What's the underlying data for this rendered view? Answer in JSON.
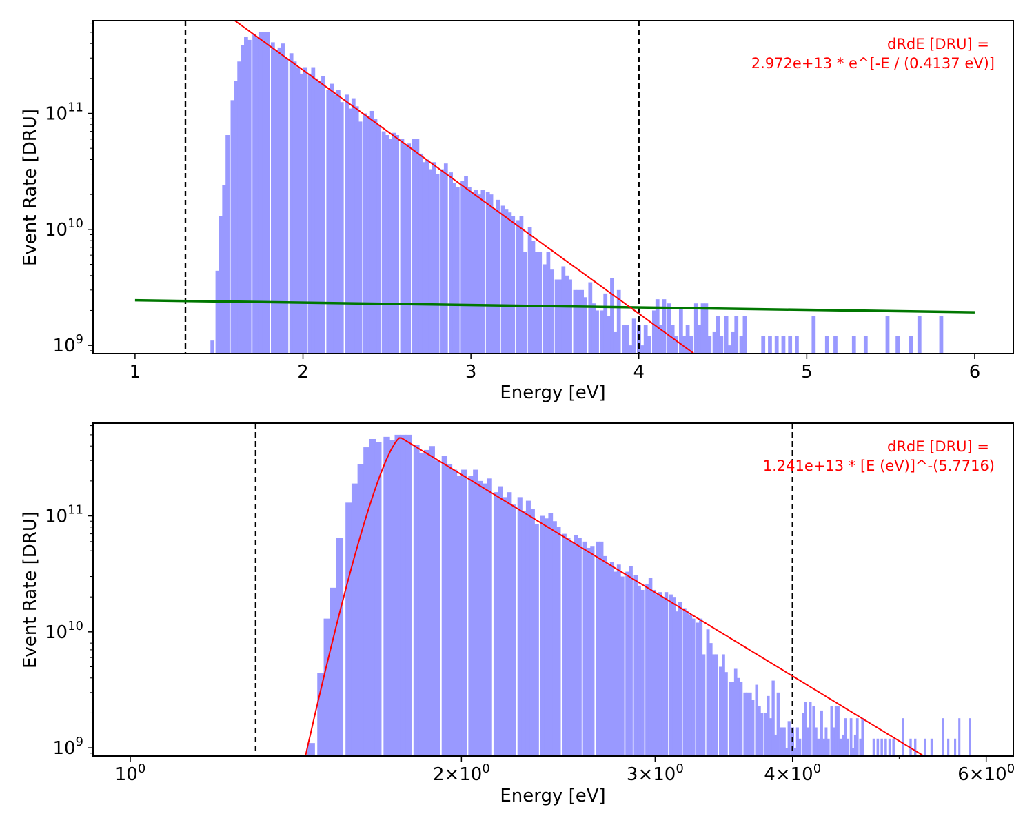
{
  "chart_data": [
    {
      "type": "bar",
      "title": "",
      "xlabel": "Energy [eV]",
      "ylabel": "Event Rate [DRU]",
      "xscale": "linear",
      "yscale": "log",
      "xlim": [
        0.75,
        6.23
      ],
      "ylim": [
        850000000.0,
        630000000000.0
      ],
      "grid": false,
      "x_ticks": [
        1,
        2,
        3,
        4,
        5,
        6
      ],
      "x_tick_labels": [
        "1",
        "2",
        "3",
        "4",
        "5",
        "6"
      ],
      "y_ticks": [
        1000000000.0,
        10000000000.0,
        100000000000.0
      ],
      "y_tick_base": [
        "10",
        "10",
        "10"
      ],
      "y_tick_exp": [
        "9",
        "10",
        "11"
      ],
      "hist_color": "#9999ff",
      "hist_bin_width": 0.022,
      "histogram": [
        [
          1.46,
          1100000000.0
        ],
        [
          1.49,
          4400000000.0
        ],
        [
          1.51,
          13000000000.0
        ],
        [
          1.53,
          24000000000.0
        ],
        [
          1.55,
          65000000000.0
        ],
        [
          1.58,
          130000000000.0
        ],
        [
          1.6,
          190000000000.0
        ],
        [
          1.62,
          280000000000.0
        ],
        [
          1.64,
          390000000000.0
        ],
        [
          1.66,
          460000000000.0
        ],
        [
          1.68,
          430000000000.0
        ],
        [
          1.71,
          480000000000.0
        ],
        [
          1.73,
          450000000000.0
        ],
        [
          1.75,
          500000000000.0
        ],
        [
          1.77,
          500000000000.0
        ],
        [
          1.79,
          500000000000.0
        ],
        [
          1.82,
          410000000000.0
        ],
        [
          1.84,
          350000000000.0
        ],
        [
          1.86,
          370000000000.0
        ],
        [
          1.88,
          400000000000.0
        ],
        [
          1.9,
          300000000000.0
        ],
        [
          1.93,
          330000000000.0
        ],
        [
          1.95,
          280000000000.0
        ],
        [
          1.97,
          250000000000.0
        ],
        [
          1.99,
          220000000000.0
        ],
        [
          2.01,
          250000000000.0
        ],
        [
          2.04,
          220000000000.0
        ],
        [
          2.06,
          250000000000.0
        ],
        [
          2.08,
          200000000000.0
        ],
        [
          2.1,
          190000000000.0
        ],
        [
          2.12,
          210000000000.0
        ],
        [
          2.15,
          160000000000.0
        ],
        [
          2.17,
          180000000000.0
        ],
        [
          2.19,
          145000000000.0
        ],
        [
          2.21,
          160000000000.0
        ],
        [
          2.23,
          125000000000.0
        ],
        [
          2.26,
          145000000000.0
        ],
        [
          2.28,
          110000000000.0
        ],
        [
          2.3,
          135000000000.0
        ],
        [
          2.32,
          115000000000.0
        ],
        [
          2.34,
          85000000000.0
        ],
        [
          2.37,
          100000000000.0
        ],
        [
          2.39,
          95000000000.0
        ],
        [
          2.41,
          105000000000.0
        ],
        [
          2.43,
          90000000000.0
        ],
        [
          2.45,
          80000000000.0
        ],
        [
          2.48,
          70000000000.0
        ],
        [
          2.5,
          65000000000.0
        ],
        [
          2.52,
          60000000000.0
        ],
        [
          2.54,
          68000000000.0
        ],
        [
          2.56,
          65000000000.0
        ],
        [
          2.59,
          60000000000.0
        ],
        [
          2.61,
          53000000000.0
        ],
        [
          2.63,
          55000000000.0
        ],
        [
          2.66,
          60000000000.0
        ],
        [
          2.68,
          60000000000.0
        ],
        [
          2.7,
          45000000000.0
        ],
        [
          2.72,
          38000000000.0
        ],
        [
          2.74,
          40000000000.0
        ],
        [
          2.76,
          33000000000.0
        ],
        [
          2.78,
          38000000000.0
        ],
        [
          2.8,
          30000000000.0
        ],
        [
          2.83,
          33000000000.0
        ],
        [
          2.85,
          37000000000.0
        ],
        [
          2.88,
          31000000000.0
        ],
        [
          2.9,
          25000000000.0
        ],
        [
          2.92,
          23000000000.0
        ],
        [
          2.95,
          26000000000.0
        ],
        [
          2.97,
          29000000000.0
        ],
        [
          2.99,
          23000000000.0
        ],
        [
          3.01,
          21000000000.0
        ],
        [
          3.03,
          22000000000.0
        ],
        [
          3.05,
          20000000000.0
        ],
        [
          3.07,
          22000000000.0
        ],
        [
          3.1,
          21000000000.0
        ],
        [
          3.12,
          20000000000.0
        ],
        [
          3.14,
          15000000000.0
        ],
        [
          3.16,
          18000000000.0
        ],
        [
          3.19,
          16000000000.0
        ],
        [
          3.21,
          15000000000.0
        ],
        [
          3.23,
          14000000000.0
        ],
        [
          3.25,
          13000000000.0
        ],
        [
          3.28,
          12000000000.0
        ],
        [
          3.3,
          13000000000.0
        ],
        [
          3.32,
          6400000000.0
        ],
        [
          3.35,
          10500000000.0
        ],
        [
          3.37,
          8000000000.0
        ],
        [
          3.39,
          6400000000.0
        ],
        [
          3.41,
          6400000000.0
        ],
        [
          3.44,
          5000000000.0
        ],
        [
          3.46,
          6400000000.0
        ],
        [
          3.48,
          4500000000.0
        ],
        [
          3.51,
          3700000000.0
        ],
        [
          3.53,
          3700000000.0
        ],
        [
          3.55,
          4800000000.0
        ],
        [
          3.57,
          4000000000.0
        ],
        [
          3.59,
          3700000000.0
        ],
        [
          3.62,
          3000000000.0
        ],
        [
          3.64,
          3000000000.0
        ],
        [
          3.66,
          3000000000.0
        ],
        [
          3.68,
          2600000000.0
        ],
        [
          3.71,
          3500000000.0
        ],
        [
          3.73,
          2300000000.0
        ],
        [
          3.75,
          2000000000.0
        ],
        [
          3.78,
          2000000000.0
        ],
        [
          3.8,
          2800000000.0
        ],
        [
          3.82,
          1800000000.0
        ],
        [
          3.84,
          3800000000.0
        ],
        [
          3.86,
          1300000000.0
        ],
        [
          3.88,
          3000000000.0
        ],
        [
          3.91,
          1500000000.0
        ],
        [
          3.93,
          1500000000.0
        ],
        [
          3.95,
          1000000000.0
        ],
        [
          3.97,
          1700000000.0
        ],
        [
          4.0,
          1500000000.0
        ],
        [
          4.02,
          1000000000.0
        ],
        [
          4.04,
          1500000000.0
        ],
        [
          4.06,
          1200000000.0
        ],
        [
          4.09,
          2000000000.0
        ],
        [
          4.11,
          2500000000.0
        ],
        [
          4.13,
          1500000000.0
        ],
        [
          4.15,
          2500000000.0
        ],
        [
          4.18,
          2300000000.0
        ],
        [
          4.2,
          1500000000.0
        ],
        [
          4.22,
          1200000000.0
        ],
        [
          4.25,
          2100000000.0
        ],
        [
          4.27,
          1200000000.0
        ],
        [
          4.29,
          1500000000.0
        ],
        [
          4.31,
          1200000000.0
        ],
        [
          4.34,
          2300000000.0
        ],
        [
          4.36,
          1500000000.0
        ],
        [
          4.38,
          2300000000.0
        ],
        [
          4.4,
          2300000000.0
        ],
        [
          4.42,
          1200000000.0
        ],
        [
          4.45,
          1300000000.0
        ],
        [
          4.47,
          1800000000.0
        ],
        [
          4.49,
          1200000000.0
        ],
        [
          4.52,
          1800000000.0
        ],
        [
          4.54,
          1000000000.0
        ],
        [
          4.56,
          1300000000.0
        ],
        [
          4.58,
          1800000000.0
        ],
        [
          4.61,
          1200000000.0
        ],
        [
          4.63,
          1800000000.0
        ],
        [
          4.74,
          1200000000.0
        ],
        [
          4.78,
          1200000000.0
        ],
        [
          4.82,
          1200000000.0
        ],
        [
          4.86,
          1200000000.0
        ],
        [
          4.9,
          1200000000.0
        ],
        [
          4.94,
          1200000000.0
        ],
        [
          5.04,
          1800000000.0
        ],
        [
          5.12,
          1200000000.0
        ],
        [
          5.17,
          1200000000.0
        ],
        [
          5.28,
          1200000000.0
        ],
        [
          5.35,
          1200000000.0
        ],
        [
          5.48,
          1800000000.0
        ],
        [
          5.54,
          1200000000.0
        ],
        [
          5.62,
          1200000000.0
        ],
        [
          5.67,
          1800000000.0
        ],
        [
          5.8,
          1800000000.0
        ]
      ],
      "fit_exponential": {
        "color": "#ff0000",
        "amplitude": 29720000000000.0,
        "scale_eV": 0.4137,
        "x_range": [
          1.55,
          4.35
        ]
      },
      "background_line": {
        "color": "#007700",
        "x": [
          1.0,
          6.0
        ],
        "y": [
          2450000000.0,
          1930000000.0
        ]
      },
      "vlines": [
        1.3,
        4.0
      ],
      "annotation": [
        "dRdE [DRU] =",
        "2.972e+13 * e^[-E / (0.4137 eV)]"
      ],
      "annotation_color": "#ff0000",
      "annotation_placement": "top-right"
    },
    {
      "type": "bar",
      "title": "",
      "xlabel": "Energy [eV]",
      "ylabel": "Event Rate [DRU]",
      "xscale": "log",
      "yscale": "log",
      "xlim": [
        0.925,
        6.35
      ],
      "ylim": [
        850000000.0,
        630000000000.0
      ],
      "grid": false,
      "x_ticks": [
        1,
        2,
        3,
        4,
        6
      ],
      "x_tick_base": [
        "10",
        "2×10",
        "3×10",
        "4×10",
        "6×10"
      ],
      "x_tick_exp": [
        "0",
        "0",
        "0",
        "0",
        "0"
      ],
      "y_ticks": [
        1000000000.0,
        10000000000.0,
        100000000000.0
      ],
      "y_tick_base": [
        "10",
        "10",
        "10"
      ],
      "y_tick_exp": [
        "9",
        "10",
        "11"
      ],
      "hist_color": "#9999ff",
      "hist_bin_width": 0.022,
      "histogram": "same as first panel",
      "fit_curve": {
        "color": "#ff0000",
        "amplitude": 12410000000000.0,
        "power": 5.7716,
        "peak_eV": 1.76,
        "x_range": [
          1.4,
          5.45
        ]
      },
      "vlines": [
        1.3,
        4.0
      ],
      "annotation": [
        "dRdE [DRU] =",
        "1.241e+13 * [E (eV)]^-(5.7716)"
      ],
      "annotation_color": "#ff0000",
      "annotation_placement": "top-right"
    }
  ]
}
